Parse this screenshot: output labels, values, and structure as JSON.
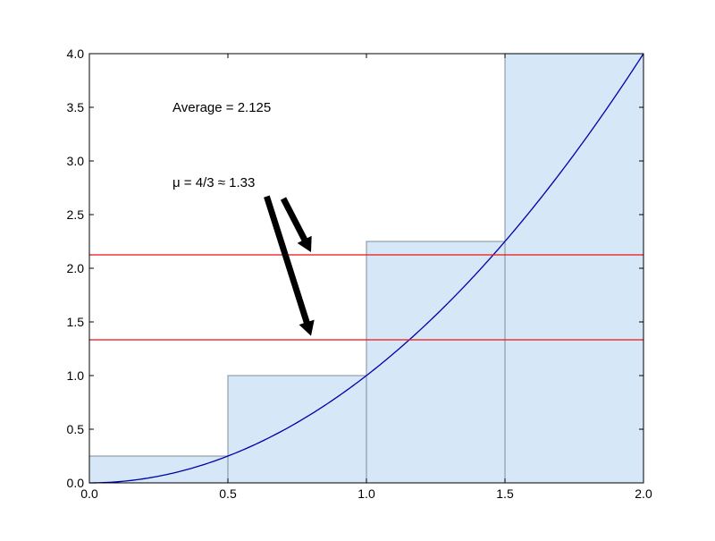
{
  "chart_data": {
    "type": "bar",
    "xlim": [
      0.0,
      2.0
    ],
    "ylim": [
      0.0,
      4.0
    ],
    "x_ticks": [
      "0.0",
      "0.5",
      "1.0",
      "1.5",
      "2.0"
    ],
    "y_ticks": [
      "0.0",
      "0.5",
      "1.0",
      "1.5",
      "2.0",
      "2.5",
      "3.0",
      "3.5",
      "4.0"
    ],
    "grid": false,
    "bars": [
      {
        "x_start": 0.0,
        "x_end": 0.5,
        "value": 0.25
      },
      {
        "x_start": 0.5,
        "x_end": 1.0,
        "value": 1.0
      },
      {
        "x_start": 1.0,
        "x_end": 1.5,
        "value": 2.25
      },
      {
        "x_start": 1.5,
        "x_end": 2.0,
        "value": 4.0
      }
    ],
    "curve": {
      "function": "y = x^2",
      "x_range": [
        0.0,
        2.0
      ]
    },
    "hlines": [
      {
        "y": 2.125
      },
      {
        "y": 1.3333
      }
    ],
    "annotations": [
      {
        "text": "Average = 2.125",
        "text_xy": [
          0.3,
          3.5
        ],
        "arrow_from": [
          0.7,
          2.65
        ],
        "arrow_to": [
          0.8,
          2.15
        ]
      },
      {
        "text": "μ = 4/3 ≈ 1.33",
        "text_xy": [
          0.3,
          2.8
        ],
        "arrow_from": [
          0.64,
          2.67
        ],
        "arrow_to": [
          0.8,
          1.37
        ]
      }
    ],
    "colors": {
      "bar_fill": "#d6e8f7",
      "bar_edge": "#7f8c99",
      "curve": "#0000aa",
      "hline": "#ee1111",
      "arrow": "#000000",
      "axes": "#000000"
    }
  }
}
